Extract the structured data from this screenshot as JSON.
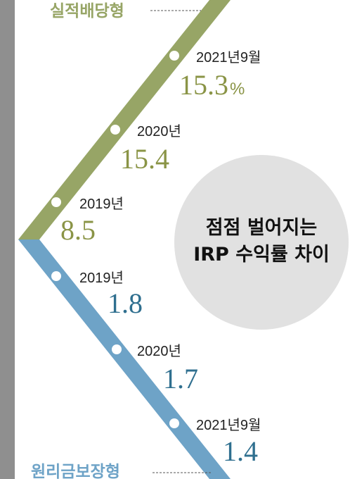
{
  "chart_data": {
    "type": "line",
    "title": "점점 벌어지는 IRP 수익률 차이",
    "title_lines": [
      "점점 벌어지는",
      "IRP 수익률 차이"
    ],
    "series": [
      {
        "name": "실적배당형",
        "color": "#97a566",
        "value_color": "#8a9446",
        "points": [
          {
            "x": "2019년",
            "y": 8.5,
            "label": "8.5"
          },
          {
            "x": "2020년",
            "y": 15.4,
            "label": "15.4"
          },
          {
            "x": "2021년9월",
            "y": 15.3,
            "label": "15.3",
            "unit": "%"
          }
        ]
      },
      {
        "name": "원리금보장형",
        "color": "#6ea3c7",
        "value_color": "#2f6f8f",
        "points": [
          {
            "x": "2019년",
            "y": 1.8,
            "label": "1.8"
          },
          {
            "x": "2020년",
            "y": 1.7,
            "label": "1.7"
          },
          {
            "x": "2021년9월",
            "y": 1.4,
            "label": "1.4"
          }
        ]
      }
    ],
    "colors": {
      "sidebar": "#8f8f8f",
      "circle": "#e1e1e1",
      "dot": "#ffffff"
    }
  }
}
